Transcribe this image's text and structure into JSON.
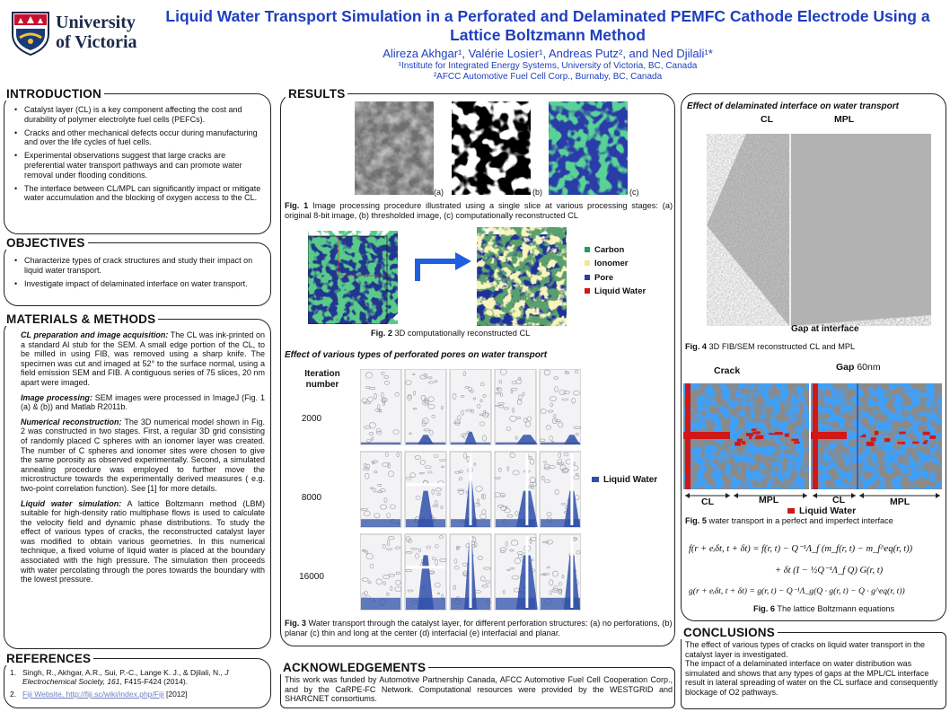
{
  "header": {
    "logo_line1": "University",
    "logo_line2": "of Victoria",
    "title_line1": "Liquid Water Transport Simulation in a Perforated and Delaminated PEMFC Cathode Electrode Using a",
    "title_line2": "Lattice Boltzmann Method",
    "authors": "Alireza Akhgar¹, Valérie Losier¹, Andreas Putz², and Ned Djilali¹*",
    "affil1": "¹Institute for Integrated Energy Systems, University of Victoria, BC, Canada",
    "affil2": "²AFCC Automotive Fuel Cell Corp., Burnaby, BC, Canada"
  },
  "introduction": {
    "title": "INTRODUCTION",
    "bullets": [
      "Catalyst layer (CL) is a key component affecting the cost and durability of polymer electrolyte fuel cells (PEFCs).",
      "Cracks and other mechanical defects occur during manufacturing and over the life cycles of fuel cells.",
      "Experimental observations suggest that large cracks are preferential water transport pathways and can promote water removal under flooding conditions.",
      "The interface between CL/MPL can significantly impact or mitigate water accumulation and the blocking of oxygen access to the CL."
    ]
  },
  "objectives": {
    "title": "OBJECTIVES",
    "bullets": [
      "Characterize types of crack structures and study their impact on liquid water transport.",
      "Investigate impact of delaminated interface on water transport."
    ]
  },
  "methods": {
    "title": "MATERIALS & METHODS",
    "p1_head": "CL preparation and image acquisition:",
    "p1": " The CL was ink-printed on a standard Al stub for the SEM. A small edge portion of the CL, to be milled in using FIB, was removed using a sharp knife. The specimen was cut and imaged at 52° to the surface normal, using a field emission SEM and FIB. A contiguous series of 75 slices, 20 nm apart were imaged.",
    "p2_head": "Image processing:",
    "p2": " SEM images were processed in ImageJ (Fig. 1 (a) & (b)) and Matlab R2011b.",
    "p3_head": "Numerical reconstruction:",
    "p3": " The 3D numerical model shown in Fig. 2 was constructed in two stages. First, a regular 3D grid consisting of randomly placed C spheres with an ionomer layer  was created. The number of C spheres and ionomer sites were chosen to give the same porosity as observed experimentally. Second, a simulated annealing procedure was employed to further move the microstructure towards the experimentally derived measures ( e.g. two-point correlation function). See [1] for more details.",
    "p4_head": "Liquid water simulation:",
    "p4": " A lattice Boltzmann method (LBM) suitable for high-density ratio multiphase flows is used to calculate the velocity field and dynamic phase distributions. To study the effect of various types of cracks, the reconstructed catalyst layer was modified to obtain various geometries. In this numerical technique, a fixed volume of liquid water is placed at the boundary associated with the high pressure. The simulation then proceeds with water percolating through the pores towards the boundary with the lowest pressure."
  },
  "references": {
    "title": "REFERENCES",
    "r1_num": "1.",
    "r1_a": "Singh, R., Akhgar, A.R., Sui, P.-C., Lange K. J., & Djilali, N., ",
    "r1_j": "J Electrochemical Society, 161",
    "r1_b": ", F415-F424 (2014).",
    "r2_num": "2.",
    "r2_link": "Fiji Website, http://fiji.sc/wiki/index.php/Fiji",
    "r2_b": " [2012]"
  },
  "results": {
    "title": "RESULTS",
    "fig1_tags": [
      "(a)",
      "(b)",
      "(c)"
    ],
    "fig1_caption_label": "Fig. 1",
    "fig1_caption": " Image processing procedure illustrated using a single slice at various processing stages: (a) original 8-bit image, (b) thresholded image, (c) computationally reconstructed CL",
    "legend": [
      {
        "label": "Carbon",
        "color": "#1aa35a"
      },
      {
        "label": "Ionomer",
        "color": "#f2ea8a"
      },
      {
        "label": "Pore",
        "color": "#2a3ca8"
      },
      {
        "label": "Liquid Water",
        "color": "#d01818"
      }
    ],
    "fig2_caption_label": "Fig. 2",
    "fig2_caption": " 3D computationally reconstructed CL",
    "pores_heading": "Effect of various types of perforated pores on water transport",
    "iter_heading": "Iteration number",
    "iterations": [
      "2000",
      "8000",
      "16000"
    ],
    "liquid_water_label": "Liquid Water",
    "fig3_caption_label": "Fig. 3",
    "fig3_caption": " Water transport through the catalyst layer, for different perforation structures: (a) no perforations, (b) planar (c) thin and long at the center (d) interfacial (e) interfacial and planar."
  },
  "delamination": {
    "heading": "Effect of delaminated interface on water transport",
    "cl_label": "CL",
    "mpl_label": "MPL",
    "gap_label": "Gap at interface",
    "fig4_caption_label": "Fig. 4",
    "fig4_caption": " 3D FIB/SEM reconstructed CL and MPL",
    "crack_label": "Crack",
    "gap_label2": "Gap",
    "gap_size": " 60nm",
    "cl_label2a": "CL",
    "mpl_label2a": "MPL",
    "cl_label2b": "CL",
    "mpl_label2b": "MPL",
    "liquid_water_label": "Liquid Water",
    "fig5_caption_label": "Fig. 5",
    "fig5_caption": " water transport in a perfect and imperfect interface",
    "eq1": "f(r + eᵢδt, t + δt) = f(r, t) − Q⁻¹Λ_f (m_f(r, t) − m_f^eq(r, t))",
    "eq2": "+ δt (I − ½Q⁻¹Λ_f Q) G(r, t)",
    "eq3": "g(r + eᵢδt, t + δt) = g(r, t) − Q⁻¹Λ_g(Q · g(r, t) − Q · g^eq(r, t))",
    "fig6_caption_label": "Fig. 6",
    "fig6_caption": " The lattice Boltzmann equations"
  },
  "conclusions": {
    "title": "CONCLUSIONS",
    "p1": "The effect of various types of cracks on liquid water transport in the catalyst layer is investigated.",
    "p2": "The impact of a delaminated interface on water distribution was simulated and shows that any types of gaps at the MPL/CL interface result in lateral spreading of water on the CL surface and consequently blockage of O2 pathways."
  },
  "acknowledgements": {
    "title": "ACKNOWLEDGEMENTS",
    "text": "This work was funded by Automotive Partnership Canada, AFCC Automotive Fuel Cell Cooperation Corp., and by the CaRPE-FC Network. Computational resources were provided by the WESTGRID and SHARCNET consortiums."
  },
  "colors": {
    "title_blue": "#1f3fbf",
    "water_blue": "#2f4fa8",
    "liquid_red": "#d01818"
  }
}
